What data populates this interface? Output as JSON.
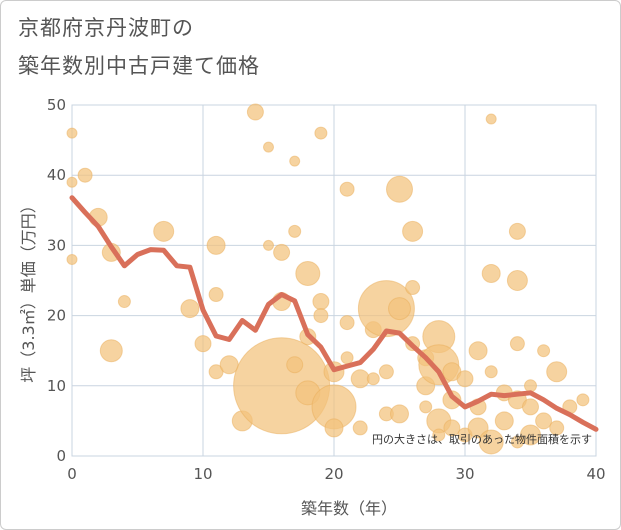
{
  "title_line1": "京都府京丹波町の",
  "title_line2": "築年数別中古戸建て価格",
  "note": "円の大きさは、取引のあった物件面積を示す",
  "colors": {
    "bubble": "#f2c27c",
    "bubble_stroke": "#e9ad5a",
    "line": "#d9705a",
    "grid": "#c9d4e0",
    "text": "#555555"
  },
  "chart_data": {
    "type": "scatter",
    "xlabel": "築年数（年）",
    "ylabel": "坪（3.3㎡）単価（万円）",
    "xlim": [
      0,
      40
    ],
    "ylim": [
      0,
      50
    ],
    "x_ticks": [
      0,
      10,
      20,
      30,
      40
    ],
    "y_ticks": [
      0,
      10,
      20,
      30,
      40,
      50
    ],
    "grid": true,
    "bubbles": [
      {
        "x": 0,
        "y": 46,
        "r": 5
      },
      {
        "x": 0,
        "y": 39,
        "r": 5
      },
      {
        "x": 0,
        "y": 28,
        "r": 5
      },
      {
        "x": 1,
        "y": 40,
        "r": 7
      },
      {
        "x": 2,
        "y": 34,
        "r": 9
      },
      {
        "x": 3,
        "y": 29,
        "r": 9
      },
      {
        "x": 4,
        "y": 22,
        "r": 6
      },
      {
        "x": 3,
        "y": 15,
        "r": 11
      },
      {
        "x": 7,
        "y": 32,
        "r": 10
      },
      {
        "x": 9,
        "y": 21,
        "r": 9
      },
      {
        "x": 10,
        "y": 16,
        "r": 8
      },
      {
        "x": 11,
        "y": 30,
        "r": 9
      },
      {
        "x": 11,
        "y": 23,
        "r": 7
      },
      {
        "x": 11,
        "y": 12,
        "r": 7
      },
      {
        "x": 12,
        "y": 13,
        "r": 9
      },
      {
        "x": 13,
        "y": 5,
        "r": 10
      },
      {
        "x": 14,
        "y": 49,
        "r": 8
      },
      {
        "x": 15,
        "y": 44,
        "r": 5
      },
      {
        "x": 15,
        "y": 30,
        "r": 5
      },
      {
        "x": 16,
        "y": 10,
        "r": 48
      },
      {
        "x": 16,
        "y": 29,
        "r": 8
      },
      {
        "x": 16,
        "y": 22,
        "r": 9
      },
      {
        "x": 17,
        "y": 42,
        "r": 5
      },
      {
        "x": 17,
        "y": 32,
        "r": 6
      },
      {
        "x": 17,
        "y": 13,
        "r": 8
      },
      {
        "x": 18,
        "y": 26,
        "r": 12
      },
      {
        "x": 18,
        "y": 17,
        "r": 8
      },
      {
        "x": 18,
        "y": 9,
        "r": 12
      },
      {
        "x": 19,
        "y": 46,
        "r": 6
      },
      {
        "x": 19,
        "y": 22,
        "r": 8
      },
      {
        "x": 19,
        "y": 20,
        "r": 7
      },
      {
        "x": 20,
        "y": 7,
        "r": 22
      },
      {
        "x": 20,
        "y": 12,
        "r": 10
      },
      {
        "x": 20,
        "y": 4,
        "r": 9
      },
      {
        "x": 21,
        "y": 38,
        "r": 7
      },
      {
        "x": 21,
        "y": 19,
        "r": 7
      },
      {
        "x": 21,
        "y": 14,
        "r": 6
      },
      {
        "x": 22,
        "y": 11,
        "r": 9
      },
      {
        "x": 22,
        "y": 4,
        "r": 7
      },
      {
        "x": 23,
        "y": 18,
        "r": 8
      },
      {
        "x": 23,
        "y": 11,
        "r": 6
      },
      {
        "x": 24,
        "y": 21,
        "r": 28
      },
      {
        "x": 24,
        "y": 12,
        "r": 7
      },
      {
        "x": 24,
        "y": 6,
        "r": 7
      },
      {
        "x": 25,
        "y": 38,
        "r": 13
      },
      {
        "x": 25,
        "y": 21,
        "r": 11
      },
      {
        "x": 25,
        "y": 6,
        "r": 9
      },
      {
        "x": 26,
        "y": 32,
        "r": 10
      },
      {
        "x": 26,
        "y": 24,
        "r": 7
      },
      {
        "x": 26,
        "y": 16,
        "r": 7
      },
      {
        "x": 27,
        "y": 14,
        "r": 8
      },
      {
        "x": 27,
        "y": 10,
        "r": 9
      },
      {
        "x": 27,
        "y": 7,
        "r": 6
      },
      {
        "x": 28,
        "y": 17,
        "r": 16
      },
      {
        "x": 28,
        "y": 13,
        "r": 20
      },
      {
        "x": 28,
        "y": 5,
        "r": 12
      },
      {
        "x": 28,
        "y": 3,
        "r": 6
      },
      {
        "x": 29,
        "y": 12,
        "r": 9
      },
      {
        "x": 29,
        "y": 8,
        "r": 9
      },
      {
        "x": 29,
        "y": 4,
        "r": 8
      },
      {
        "x": 30,
        "y": 11,
        "r": 8
      },
      {
        "x": 30,
        "y": 3,
        "r": 7
      },
      {
        "x": 31,
        "y": 15,
        "r": 9
      },
      {
        "x": 31,
        "y": 7,
        "r": 8
      },
      {
        "x": 31,
        "y": 4,
        "r": 10
      },
      {
        "x": 32,
        "y": 48,
        "r": 5
      },
      {
        "x": 32,
        "y": 26,
        "r": 9
      },
      {
        "x": 32,
        "y": 12,
        "r": 6
      },
      {
        "x": 32,
        "y": 2,
        "r": 12
      },
      {
        "x": 33,
        "y": 9,
        "r": 8
      },
      {
        "x": 33,
        "y": 5,
        "r": 9
      },
      {
        "x": 34,
        "y": 32,
        "r": 8
      },
      {
        "x": 34,
        "y": 25,
        "r": 10
      },
      {
        "x": 34,
        "y": 16,
        "r": 7
      },
      {
        "x": 34,
        "y": 8,
        "r": 9
      },
      {
        "x": 34,
        "y": 2,
        "r": 6
      },
      {
        "x": 35,
        "y": 10,
        "r": 6
      },
      {
        "x": 35,
        "y": 7,
        "r": 8
      },
      {
        "x": 35,
        "y": 3,
        "r": 10
      },
      {
        "x": 36,
        "y": 15,
        "r": 6
      },
      {
        "x": 36,
        "y": 5,
        "r": 8
      },
      {
        "x": 37,
        "y": 12,
        "r": 10
      },
      {
        "x": 37,
        "y": 4,
        "r": 7
      },
      {
        "x": 38,
        "y": 7,
        "r": 7
      },
      {
        "x": 39,
        "y": 8,
        "r": 6
      }
    ],
    "trend_line": {
      "x": [
        0,
        1,
        2,
        3,
        4,
        5,
        6,
        7,
        8,
        9,
        10,
        11,
        12,
        13,
        14,
        15,
        16,
        17,
        18,
        19,
        20,
        21,
        22,
        23,
        24,
        25,
        26,
        27,
        28,
        29,
        30,
        31,
        32,
        33,
        34,
        35,
        36,
        37,
        38,
        39,
        40
      ],
      "y": [
        36.8,
        34.7,
        32.7,
        29.8,
        27.1,
        28.7,
        29.4,
        29.3,
        27.1,
        26.9,
        20.8,
        17.1,
        16.6,
        19.3,
        17.9,
        21.6,
        23.0,
        22.1,
        17.3,
        15.5,
        12.3,
        12.8,
        13.3,
        15.2,
        17.8,
        17.5,
        15.7,
        14.0,
        12.0,
        8.5,
        7.0,
        7.8,
        8.8,
        8.6,
        8.8,
        9.0,
        8.0,
        6.8,
        5.9,
        4.8,
        3.8
      ]
    }
  }
}
